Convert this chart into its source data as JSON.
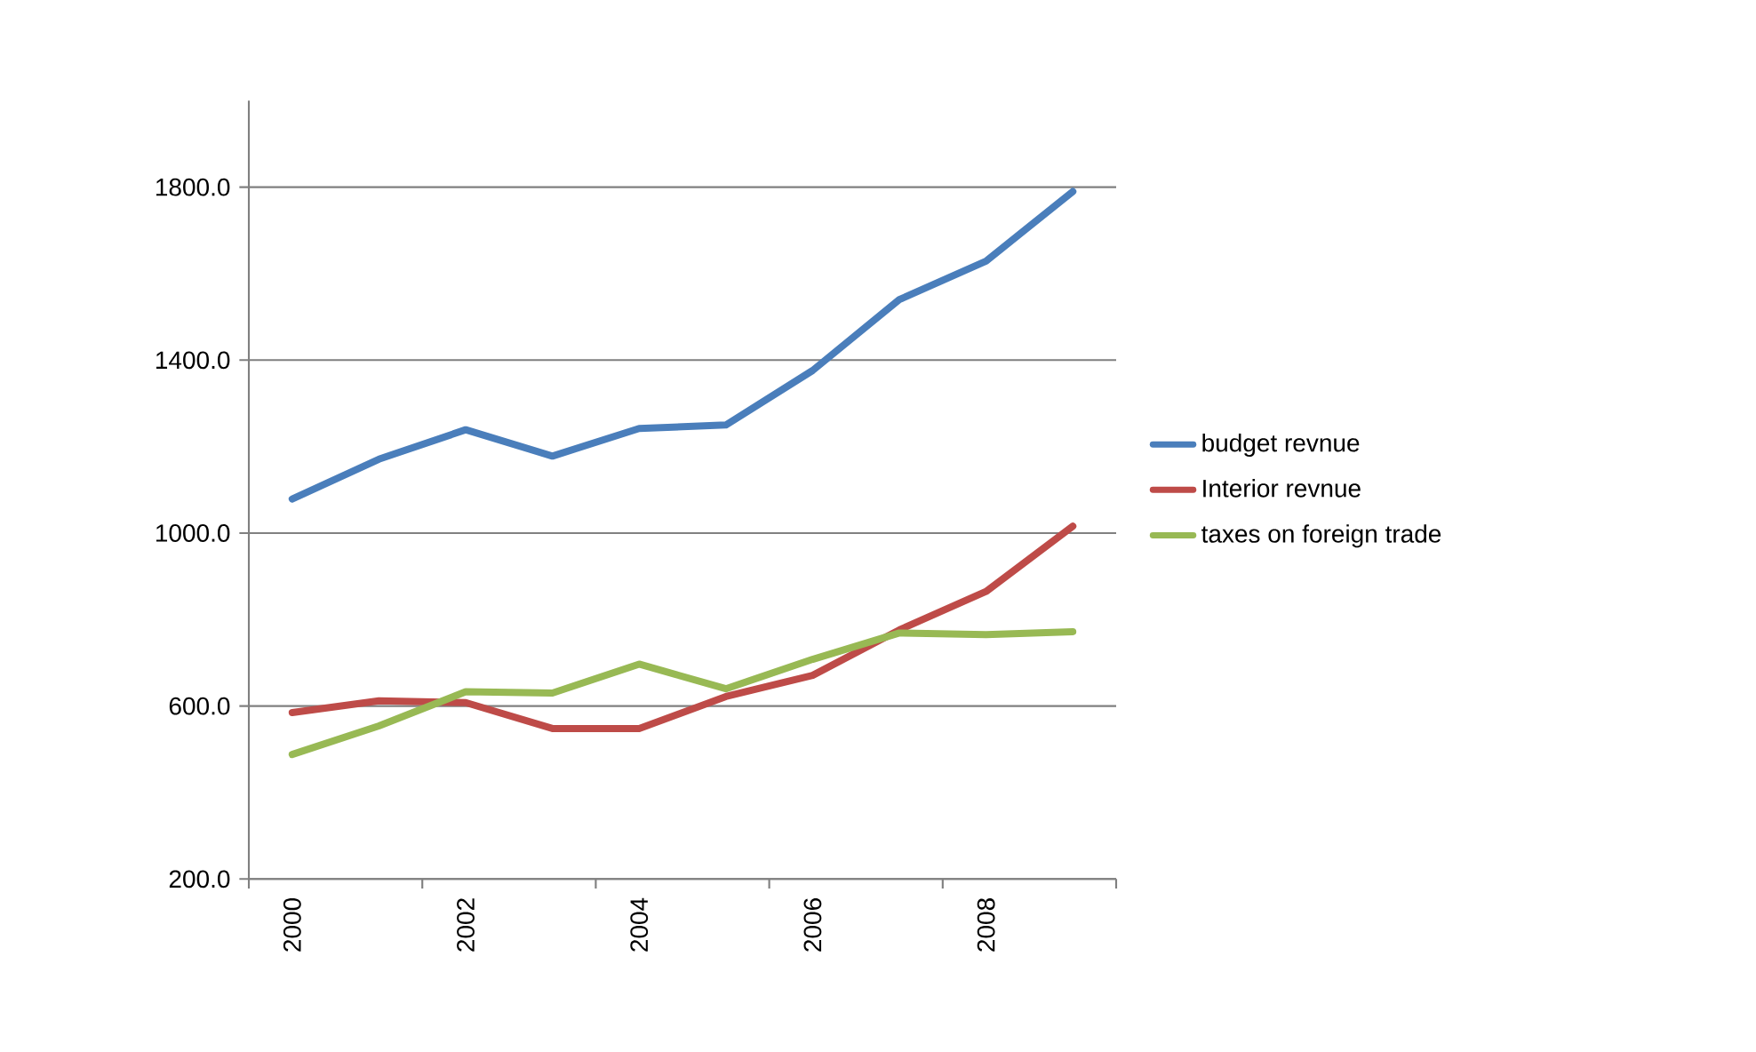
{
  "chart_data": {
    "type": "line",
    "categories": [
      "2000",
      null,
      "2002",
      null,
      "2004",
      null,
      "2006",
      null,
      "2008",
      null
    ],
    "series": [
      {
        "name": "budget revnue",
        "color": "#4a7ebb",
        "values": [
          1079,
          1171,
          1239,
          1178,
          1242,
          1250,
          1376,
          1540,
          1629,
          1790
        ]
      },
      {
        "name": "Interior revnue",
        "color": "#be4b48",
        "values": [
          585,
          612,
          608,
          548,
          548,
          622,
          671,
          776,
          865,
          1016
        ]
      },
      {
        "name": "taxes on foreign trade",
        "color": "#98b954",
        "values": [
          488,
          554,
          633,
          630,
          697,
          640,
          708,
          769,
          765,
          772
        ]
      }
    ],
    "ylim": [
      200,
      2000
    ],
    "yticks": [
      {
        "value": 200,
        "label": "200.0"
      },
      {
        "value": 600,
        "label": "600.0"
      },
      {
        "value": 1000,
        "label": "1000.0"
      },
      {
        "value": 1400,
        "label": "1400.0"
      },
      {
        "value": 1800,
        "label": "1800.0"
      }
    ],
    "grid": "y",
    "legend": "right",
    "marker": "none",
    "line_style": "solid"
  }
}
